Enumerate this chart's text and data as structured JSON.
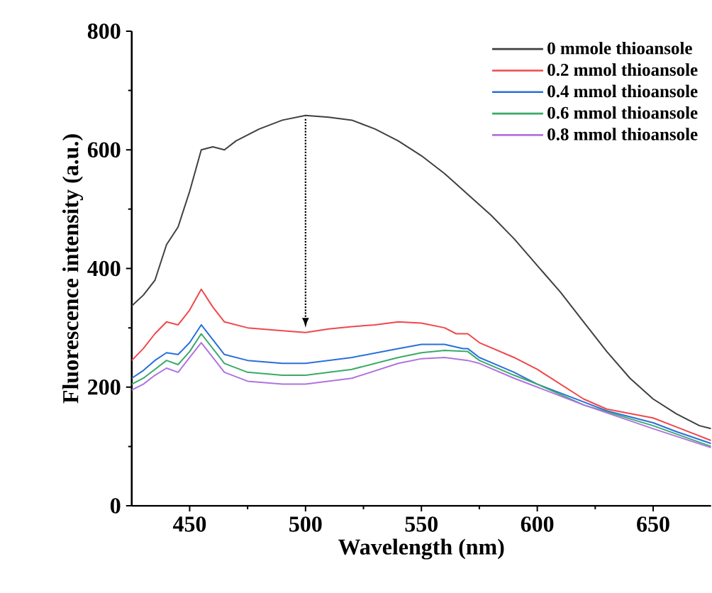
{
  "chart_data": {
    "type": "line",
    "xlabel": "Wavelength (nm)",
    "ylabel": "Fluorescence intensity (a.u.)",
    "xlim": [
      425,
      675
    ],
    "xticks": [
      450,
      500,
      550,
      600,
      650
    ],
    "ylim": [
      0,
      800
    ],
    "yticks": [
      0,
      200,
      400,
      600,
      800
    ],
    "grid": false,
    "legend": "top right",
    "marker": "none",
    "line_style": "solid",
    "series": [
      {
        "name": "0 mmole thioansole",
        "color": "#404040",
        "x": [
          425,
          430,
          435,
          440,
          445,
          450,
          455,
          460,
          465,
          470,
          480,
          490,
          500,
          510,
          520,
          530,
          540,
          550,
          560,
          570,
          580,
          590,
          600,
          610,
          620,
          630,
          640,
          650,
          660,
          670,
          675
        ],
        "values": [
          337,
          355,
          380,
          440,
          470,
          530,
          600,
          605,
          600,
          615,
          635,
          650,
          658,
          655,
          650,
          635,
          615,
          590,
          560,
          525,
          490,
          450,
          405,
          360,
          310,
          260,
          215,
          180,
          155,
          135,
          130
        ]
      },
      {
        "name": "0.2 mmol thioansole",
        "color": "#f0484b",
        "x": [
          425,
          430,
          435,
          440,
          445,
          450,
          455,
          460,
          465,
          475,
          490,
          500,
          510,
          520,
          530,
          540,
          550,
          560,
          565,
          570,
          575,
          590,
          600,
          610,
          620,
          630,
          650,
          660,
          675
        ],
        "values": [
          245,
          265,
          290,
          310,
          305,
          330,
          365,
          335,
          310,
          300,
          295,
          292,
          298,
          302,
          305,
          310,
          308,
          300,
          290,
          290,
          275,
          250,
          230,
          205,
          180,
          163,
          148,
          133,
          110
        ]
      },
      {
        "name": "0.4 mmol thioansole",
        "color": "#2a6fdb",
        "x": [
          425,
          430,
          435,
          440,
          445,
          450,
          455,
          460,
          465,
          475,
          490,
          500,
          520,
          540,
          550,
          560,
          568,
          570,
          575,
          590,
          600,
          620,
          630,
          650,
          660,
          675
        ],
        "values": [
          215,
          228,
          245,
          258,
          255,
          275,
          305,
          280,
          255,
          245,
          240,
          240,
          250,
          265,
          272,
          272,
          265,
          265,
          250,
          225,
          205,
          175,
          160,
          140,
          125,
          105
        ]
      },
      {
        "name": "0.6 mmol thioansole",
        "color": "#3aaa66",
        "x": [
          425,
          430,
          435,
          440,
          445,
          450,
          455,
          460,
          465,
          475,
          490,
          500,
          520,
          540,
          550,
          560,
          570,
          575,
          590,
          600,
          620,
          650,
          675
        ],
        "values": [
          205,
          215,
          230,
          245,
          238,
          260,
          290,
          265,
          240,
          225,
          220,
          220,
          230,
          250,
          258,
          262,
          260,
          245,
          220,
          205,
          170,
          135,
          100
        ]
      },
      {
        "name": "0.8 mmol thioansole",
        "color": "#b073e0",
        "x": [
          425,
          430,
          435,
          440,
          445,
          450,
          455,
          460,
          465,
          475,
          490,
          500,
          520,
          540,
          550,
          560,
          570,
          575,
          590,
          600,
          620,
          650,
          675
        ],
        "values": [
          195,
          205,
          220,
          232,
          225,
          250,
          275,
          250,
          225,
          210,
          205,
          205,
          215,
          240,
          248,
          250,
          245,
          240,
          215,
          200,
          170,
          130,
          98
        ]
      }
    ]
  }
}
